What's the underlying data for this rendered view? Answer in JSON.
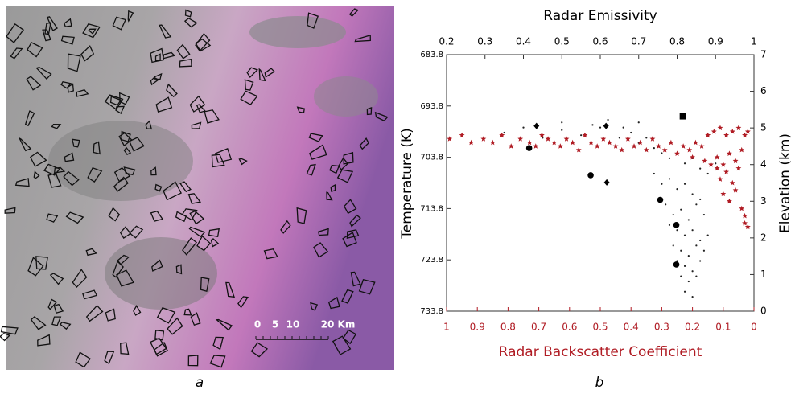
{
  "panel_a": {
    "label": "a",
    "scale_bar": {
      "labels": [
        "0",
        "5",
        "10",
        "20 Km"
      ]
    }
  },
  "panel_b_label": "b",
  "chart_data": {
    "type": "scatter",
    "title": "Radar Emissivity",
    "x2_label": "Radar Backscatter Coefficient",
    "y_label": "Temperature (K)",
    "y2_label": "Elevation (km)",
    "xlim": [
      0.2,
      1
    ],
    "xticks": [
      0.2,
      0.3,
      0.4,
      0.5,
      0.6,
      0.7,
      0.8,
      0.9,
      1
    ],
    "x2lim": [
      1,
      0
    ],
    "x2ticks": [
      1,
      0.9,
      0.8,
      0.7,
      0.6,
      0.5,
      0.4,
      0.3,
      0.2,
      0.1,
      0
    ],
    "x2_color": "#b01c24",
    "ylim": [
      733.8,
      683.8
    ],
    "yticks": [
      683.8,
      693.8,
      703.8,
      713.8,
      723.8,
      733.8
    ],
    "y2lim": [
      0,
      7
    ],
    "y2ticks": [
      0,
      1,
      2,
      3,
      4,
      5,
      6,
      7
    ],
    "series": [
      {
        "color": "#222222",
        "marker": "dot",
        "x_axis": "x",
        "x": [
          0.35,
          0.4,
          0.45,
          0.5,
          0.55,
          0.6,
          0.65,
          0.68,
          0.7,
          0.72,
          0.74,
          0.76,
          0.78,
          0.8,
          0.82,
          0.84,
          0.86,
          0.88,
          0.9,
          0.5,
          0.58,
          0.62,
          0.66,
          0.7,
          0.74,
          0.76,
          0.78,
          0.8,
          0.82,
          0.84,
          0.86,
          0.77,
          0.79,
          0.81,
          0.83,
          0.85,
          0.87,
          0.78,
          0.8,
          0.82,
          0.84,
          0.86,
          0.88,
          0.79,
          0.81,
          0.83,
          0.85,
          0.87,
          0.8,
          0.82,
          0.84,
          0.86,
          0.81,
          0.83,
          0.85,
          0.82,
          0.84
        ],
        "values": [
          699,
          698,
          700,
          698.5,
          699.5,
          698,
          700,
          699,
          701,
          700,
          702,
          703,
          704,
          703,
          705,
          704,
          706,
          707,
          705,
          697,
          697.5,
          696.5,
          698,
          697,
          707,
          709,
          708,
          710,
          709,
          711,
          712,
          713,
          715,
          714,
          716,
          713,
          715,
          717,
          718,
          719,
          718,
          720,
          719,
          721,
          722,
          723,
          721,
          722,
          724,
          725,
          726,
          724,
          727,
          728,
          727,
          730,
          731
        ]
      },
      {
        "color": "#b01c24",
        "marker": "star",
        "x_axis": "x2",
        "axis": "y2",
        "x": [
          0.99,
          0.95,
          0.92,
          0.88,
          0.85,
          0.82,
          0.79,
          0.76,
          0.73,
          0.71,
          0.69,
          0.67,
          0.65,
          0.63,
          0.61,
          0.59,
          0.57,
          0.55,
          0.53,
          0.51,
          0.49,
          0.47,
          0.45,
          0.43,
          0.41,
          0.39,
          0.37,
          0.35,
          0.33,
          0.31,
          0.29,
          0.27,
          0.25,
          0.23,
          0.21,
          0.19,
          0.17,
          0.15,
          0.13,
          0.11,
          0.09,
          0.07,
          0.05,
          0.03,
          0.02,
          0.12,
          0.1,
          0.08,
          0.06,
          0.04,
          0.14,
          0.11,
          0.09,
          0.07,
          0.05,
          0.1,
          0.08,
          0.06,
          0.04,
          0.03,
          0.2,
          0.16,
          0.12,
          0.03,
          0.02
        ],
        "values": [
          4.7,
          4.8,
          4.6,
          4.7,
          4.6,
          4.8,
          4.5,
          4.7,
          4.6,
          4.5,
          4.8,
          4.7,
          4.6,
          4.5,
          4.7,
          4.6,
          4.4,
          4.8,
          4.6,
          4.5,
          4.7,
          4.6,
          4.5,
          4.4,
          4.7,
          4.5,
          4.6,
          4.4,
          4.7,
          4.5,
          4.4,
          4.6,
          4.3,
          4.5,
          4.4,
          4.6,
          4.5,
          4.8,
          4.9,
          5.0,
          4.8,
          4.9,
          5.0,
          4.8,
          4.9,
          4.2,
          4.0,
          4.3,
          4.1,
          4.4,
          4.0,
          3.6,
          3.8,
          3.5,
          3.9,
          3.2,
          3.0,
          3.3,
          2.8,
          2.6,
          4.2,
          4.1,
          3.9,
          2.4,
          2.3
        ]
      },
      {
        "color": "#000000",
        "marker": "diamond",
        "x_axis": "x",
        "x": [
          0.434,
          0.615,
          0.617
        ],
        "values": [
          697.7,
          697.7,
          708.7
        ]
      },
      {
        "color": "#000000",
        "marker": "circle",
        "x_axis": "x",
        "x": [
          0.575,
          0.756,
          0.798,
          0.798,
          0.415
        ],
        "values": [
          707.3,
          712.1,
          717,
          724.7,
          702
        ]
      },
      {
        "color": "#000000",
        "marker": "square",
        "x_axis": "x",
        "x": [
          0.815
        ],
        "values": [
          695.8
        ]
      }
    ]
  }
}
